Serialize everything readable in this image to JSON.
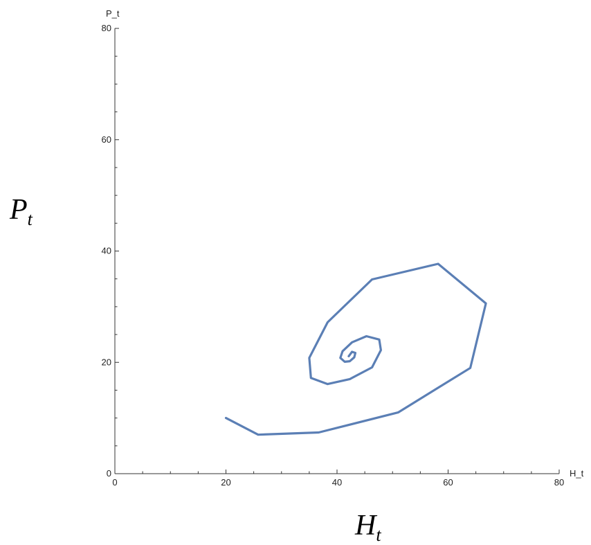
{
  "chart_data": {
    "type": "line",
    "x_axis_label": "H_t",
    "y_axis_label": "P_t",
    "outer_x_label": {
      "base": "H",
      "sub": "t"
    },
    "outer_y_label": {
      "base": "P",
      "sub": "t"
    },
    "xlim": [
      0,
      80
    ],
    "ylim": [
      0,
      80
    ],
    "x_ticks": [
      0,
      20,
      40,
      60,
      80
    ],
    "y_ticks": [
      0,
      20,
      40,
      60,
      80
    ],
    "grid": false,
    "line_color": "#5b7fb5",
    "series": [
      {
        "x": [
          20.0,
          25.8,
          36.7,
          51.0,
          64.0,
          66.8,
          58.2,
          46.3,
          38.3,
          35.0,
          35.3,
          38.3,
          42.3,
          46.3,
          47.9,
          47.6,
          45.3,
          42.7,
          41.0,
          40.6,
          41.4,
          42.3,
          43.1,
          43.3,
          42.7,
          42.1
        ],
        "y": [
          10.0,
          7.0,
          7.4,
          11.0,
          19.0,
          30.6,
          37.7,
          34.9,
          27.2,
          20.8,
          17.2,
          16.1,
          17.0,
          19.1,
          22.2,
          24.1,
          24.7,
          23.6,
          22.0,
          20.8,
          20.1,
          20.2,
          20.9,
          21.7,
          21.9,
          21.1
        ]
      }
    ]
  }
}
